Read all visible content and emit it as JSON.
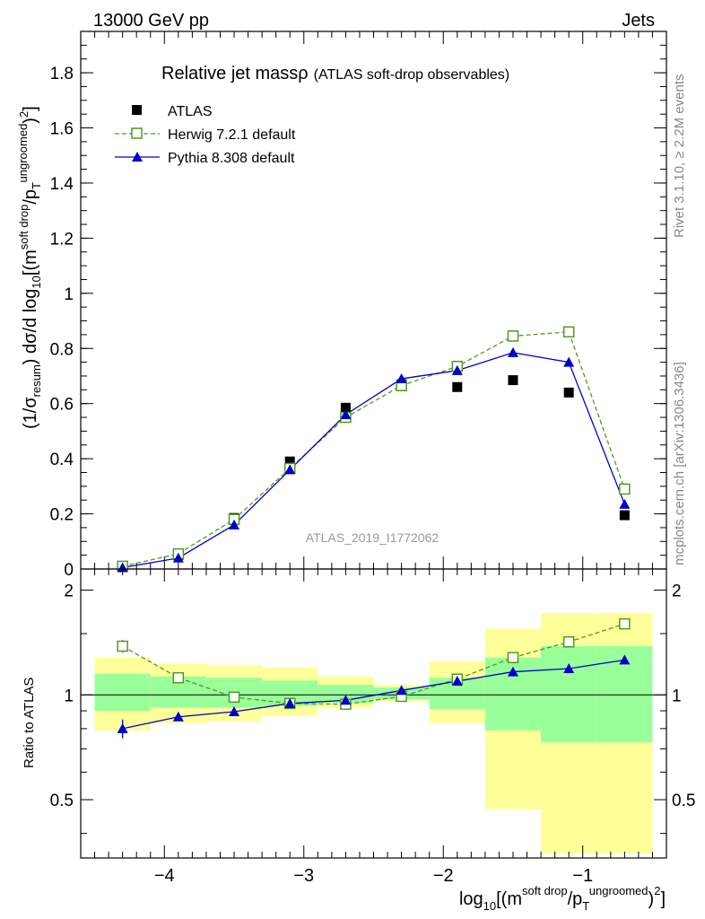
{
  "header": {
    "left": "13000 GeV pp",
    "right": "Jets"
  },
  "side_labels": {
    "rivet": "Rivet 3.1.10, ≥ 2.2M events",
    "mcplots": "mcplots.cern.ch [arXiv:1306.3436]"
  },
  "watermark": "ATLAS_2019_I1772062",
  "chart_data": [
    {
      "type": "scatter",
      "title": "Relative jet massρ",
      "subtitle": "(ATLAS soft-drop observables)",
      "ylabel": {
        "prefix": "(1/σ",
        "sub1": "resum",
        "mid": ") dσ/d log",
        "sub2": "10",
        "bracket": "[(m",
        "sup1": "soft drop",
        "slash": "/p",
        "sub3": "T",
        "sup2": "ungroomed",
        "tail": ")",
        "sup3": "2",
        "close": "]"
      },
      "xlim": [
        -4.6,
        -0.4
      ],
      "ylim": [
        0,
        1.95
      ],
      "yticks": [
        "0",
        "0.2",
        "0.4",
        "0.6",
        "0.8",
        "1",
        "1.2",
        "1.4",
        "1.6",
        "1.8"
      ],
      "legend_position": "top-left",
      "series": [
        {
          "name": "ATLAS",
          "color": "#000000",
          "marker": "filled-square",
          "x": [
            -4.3,
            -3.9,
            -3.5,
            -3.1,
            -2.7,
            -2.3,
            -1.9,
            -1.5,
            -1.1,
            -0.7
          ],
          "y": [
            0.01,
            0.05,
            0.185,
            0.39,
            0.585,
            0.67,
            0.66,
            0.685,
            0.64,
            0.195
          ]
        },
        {
          "name": "Herwig 7.2.1 default",
          "color": "#4f9a1f",
          "marker": "open-square",
          "line": "dashed",
          "x": [
            -4.3,
            -3.9,
            -3.5,
            -3.1,
            -2.7,
            -2.3,
            -1.9,
            -1.5,
            -1.1,
            -0.7
          ],
          "y": [
            0.01,
            0.055,
            0.18,
            0.365,
            0.55,
            0.665,
            0.735,
            0.845,
            0.86,
            0.29
          ]
        },
        {
          "name": "Pythia 8.308 default",
          "color": "#0000cc",
          "marker": "filled-triangle",
          "line": "solid",
          "x": [
            -4.3,
            -3.9,
            -3.5,
            -3.1,
            -2.7,
            -2.3,
            -1.9,
            -1.5,
            -1.1,
            -0.7
          ],
          "y": [
            0.005,
            0.04,
            0.16,
            0.36,
            0.56,
            0.69,
            0.72,
            0.785,
            0.75,
            0.235
          ]
        }
      ]
    },
    {
      "type": "scatter",
      "title": "",
      "xlabel": {
        "prefix": "log",
        "sub1": "10",
        "bracket": "[(m",
        "sup1": "soft drop",
        "slash": "/p",
        "sub2": "T",
        "sup2": "ungroomed",
        "tail": ")",
        "sup3": "2",
        "close": "]"
      },
      "ylabel": "Ratio to ATLAS",
      "xlim": [
        -4.6,
        -0.4
      ],
      "ylim": [
        0.34,
        2.3
      ],
      "ylog": true,
      "xticks": [
        "−4",
        "−3",
        "−2",
        "−1"
      ],
      "yticks": [
        "0.5",
        "1",
        "2"
      ],
      "bins": [
        -4.5,
        -4.1,
        -3.7,
        -3.3,
        -2.9,
        -2.5,
        -2.1,
        -1.7,
        -1.3,
        -0.9,
        -0.5
      ],
      "band_yellow": {
        "low": [
          0.79,
          0.83,
          0.84,
          0.87,
          0.92,
          0.96,
          0.83,
          0.47,
          0.35,
          0.35
        ],
        "high": [
          1.28,
          1.23,
          1.22,
          1.2,
          1.13,
          1.07,
          1.25,
          1.55,
          1.72,
          1.72
        ]
      },
      "band_green": {
        "low": [
          0.9,
          0.92,
          0.92,
          0.93,
          0.95,
          0.97,
          0.91,
          0.79,
          0.73,
          0.73
        ],
        "high": [
          1.15,
          1.13,
          1.12,
          1.1,
          1.07,
          1.05,
          1.12,
          1.28,
          1.38,
          1.38
        ]
      },
      "series": [
        {
          "name": "Herwig 7.2.1 default",
          "color": "#4f9a1f",
          "x": [
            -4.3,
            -3.9,
            -3.5,
            -3.1,
            -2.7,
            -2.3,
            -1.9,
            -1.5,
            -1.1,
            -0.7
          ],
          "y": [
            1.38,
            1.12,
            0.985,
            0.945,
            0.94,
            0.99,
            1.11,
            1.28,
            1.42,
            1.6
          ],
          "err": [
            0.06,
            0.02,
            0.01,
            0.01,
            0.01,
            0.01,
            0.01,
            0.01,
            0.01,
            0.02
          ]
        },
        {
          "name": "Pythia 8.308 default",
          "color": "#0000cc",
          "x": [
            -4.3,
            -3.9,
            -3.5,
            -3.1,
            -2.7,
            -2.3,
            -1.9,
            -1.5,
            -1.1,
            -0.7
          ],
          "y": [
            0.8,
            0.865,
            0.895,
            0.945,
            0.965,
            1.03,
            1.095,
            1.165,
            1.19,
            1.26
          ],
          "err": [
            0.05,
            0.02,
            0.01,
            0.01,
            0.01,
            0.01,
            0.01,
            0.01,
            0.01,
            0.01
          ]
        }
      ]
    }
  ]
}
